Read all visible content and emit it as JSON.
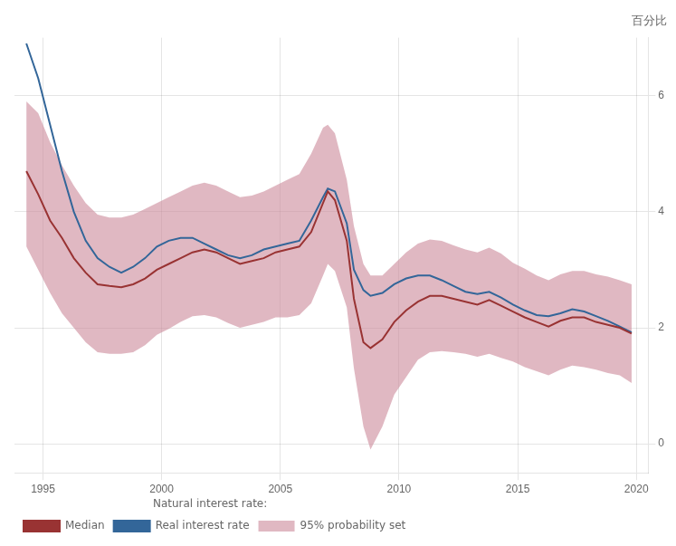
{
  "chart_data": {
    "type": "line",
    "ylabel": "百分比",
    "legend_title": "Natural interest rate:",
    "legend": "bottom",
    "grid": true,
    "xlim": [
      1993.8,
      2020.5
    ],
    "ylim": [
      -0.5,
      7.0
    ],
    "xticks": [
      1995,
      2000,
      2005,
      2010,
      2015,
      2020
    ],
    "yticks": [
      0,
      2,
      4,
      6
    ],
    "x": [
      1994.3,
      1994.8,
      1995.3,
      1995.8,
      1996.3,
      1996.8,
      1997.3,
      1997.8,
      1998.3,
      1998.8,
      1999.3,
      1999.8,
      2000.3,
      2000.8,
      2001.3,
      2001.8,
      2002.3,
      2002.8,
      2003.3,
      2003.8,
      2004.3,
      2004.8,
      2005.3,
      2005.8,
      2006.3,
      2006.8,
      2007.0,
      2007.3,
      2007.8,
      2008.1,
      2008.5,
      2008.8,
      2009.3,
      2009.8,
      2010.3,
      2010.8,
      2011.3,
      2011.8,
      2012.3,
      2012.8,
      2013.3,
      2013.8,
      2014.3,
      2014.8,
      2015.3,
      2015.8,
      2016.3,
      2016.8,
      2017.3,
      2017.8,
      2018.3,
      2018.8,
      2019.3,
      2019.8
    ],
    "series": [
      {
        "name": "95% probability set",
        "type": "band",
        "color": "#cc8899",
        "lower": [
          3.4,
          3.0,
          2.6,
          2.25,
          2.0,
          1.75,
          1.58,
          1.55,
          1.55,
          1.58,
          1.7,
          1.88,
          1.98,
          2.1,
          2.2,
          2.22,
          2.18,
          2.08,
          2.0,
          2.05,
          2.1,
          2.18,
          2.18,
          2.22,
          2.42,
          2.9,
          3.1,
          2.98,
          2.35,
          1.3,
          0.3,
          -0.1,
          0.3,
          0.85,
          1.15,
          1.45,
          1.58,
          1.6,
          1.58,
          1.55,
          1.5,
          1.55,
          1.48,
          1.42,
          1.32,
          1.25,
          1.18,
          1.28,
          1.35,
          1.32,
          1.28,
          1.22,
          1.18,
          1.05
        ],
        "upper": [
          5.9,
          5.7,
          5.2,
          4.8,
          4.45,
          4.15,
          3.95,
          3.9,
          3.9,
          3.95,
          4.05,
          4.15,
          4.25,
          4.35,
          4.45,
          4.5,
          4.45,
          4.35,
          4.25,
          4.28,
          4.35,
          4.45,
          4.55,
          4.65,
          5.0,
          5.45,
          5.5,
          5.35,
          4.55,
          3.75,
          3.1,
          2.9,
          2.9,
          3.1,
          3.3,
          3.45,
          3.52,
          3.5,
          3.42,
          3.35,
          3.3,
          3.38,
          3.28,
          3.12,
          3.02,
          2.9,
          2.82,
          2.92,
          2.98,
          2.98,
          2.92,
          2.88,
          2.82,
          2.75
        ]
      },
      {
        "name": "Median",
        "type": "line",
        "color": "#993333",
        "values": [
          4.7,
          4.3,
          3.85,
          3.55,
          3.2,
          2.95,
          2.75,
          2.72,
          2.7,
          2.75,
          2.85,
          3.0,
          3.1,
          3.2,
          3.3,
          3.35,
          3.3,
          3.2,
          3.1,
          3.15,
          3.2,
          3.3,
          3.35,
          3.4,
          3.65,
          4.15,
          4.35,
          4.2,
          3.5,
          2.5,
          1.75,
          1.65,
          1.8,
          2.1,
          2.3,
          2.45,
          2.55,
          2.55,
          2.5,
          2.45,
          2.4,
          2.48,
          2.38,
          2.28,
          2.18,
          2.1,
          2.02,
          2.12,
          2.18,
          2.18,
          2.1,
          2.05,
          2.0,
          1.9
        ]
      },
      {
        "name": "Real interest rate",
        "type": "line",
        "color": "#336699",
        "values": [
          6.9,
          6.3,
          5.5,
          4.7,
          4.0,
          3.5,
          3.2,
          3.05,
          2.95,
          3.05,
          3.2,
          3.4,
          3.5,
          3.55,
          3.55,
          3.45,
          3.35,
          3.25,
          3.2,
          3.25,
          3.35,
          3.4,
          3.45,
          3.5,
          3.85,
          4.25,
          4.4,
          4.35,
          3.8,
          3.0,
          2.65,
          2.55,
          2.6,
          2.75,
          2.85,
          2.9,
          2.9,
          2.82,
          2.72,
          2.62,
          2.58,
          2.62,
          2.52,
          2.4,
          2.3,
          2.22,
          2.2,
          2.25,
          2.32,
          2.28,
          2.2,
          2.12,
          2.02,
          1.92
        ]
      }
    ]
  }
}
